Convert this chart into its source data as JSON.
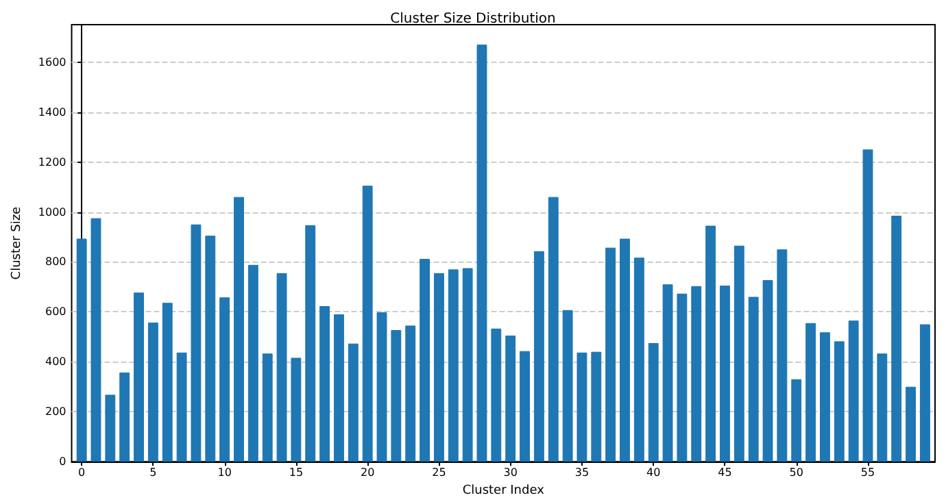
{
  "chart_data": {
    "type": "bar",
    "title": "Cluster Size Distribution",
    "xlabel": "Cluster Index",
    "ylabel": "Cluster Size",
    "x": [
      0,
      1,
      2,
      3,
      4,
      5,
      6,
      7,
      8,
      9,
      10,
      11,
      12,
      13,
      14,
      15,
      16,
      17,
      18,
      19,
      20,
      21,
      22,
      23,
      24,
      25,
      26,
      27,
      28,
      29,
      30,
      31,
      32,
      33,
      34,
      35,
      36,
      37,
      38,
      39,
      40,
      41,
      42,
      43,
      44,
      45,
      46,
      47,
      48,
      49,
      50,
      51,
      52,
      53,
      54,
      55,
      56,
      57,
      58,
      59
    ],
    "values": [
      893,
      975,
      268,
      357,
      677,
      557,
      636,
      437,
      950,
      905,
      658,
      1060,
      788,
      433,
      755,
      416,
      947,
      623,
      590,
      473,
      1105,
      598,
      527,
      545,
      812,
      755,
      770,
      775,
      1670,
      533,
      505,
      443,
      843,
      1060,
      607,
      437,
      440,
      857,
      893,
      817,
      475,
      710,
      673,
      703,
      945,
      705,
      865,
      660,
      727,
      850,
      330,
      555,
      518,
      482,
      565,
      1250,
      433,
      985,
      300,
      550
    ],
    "color": "#1f77b4",
    "xlim": [
      -0.7,
      59.7
    ],
    "xticks": [
      0,
      5,
      10,
      15,
      20,
      25,
      30,
      35,
      40,
      45,
      50,
      55
    ],
    "ylim": [
      0,
      1750
    ],
    "yticks": [
      0,
      200,
      400,
      600,
      800,
      1000,
      1200,
      1400,
      1600
    ],
    "grid": "y"
  }
}
